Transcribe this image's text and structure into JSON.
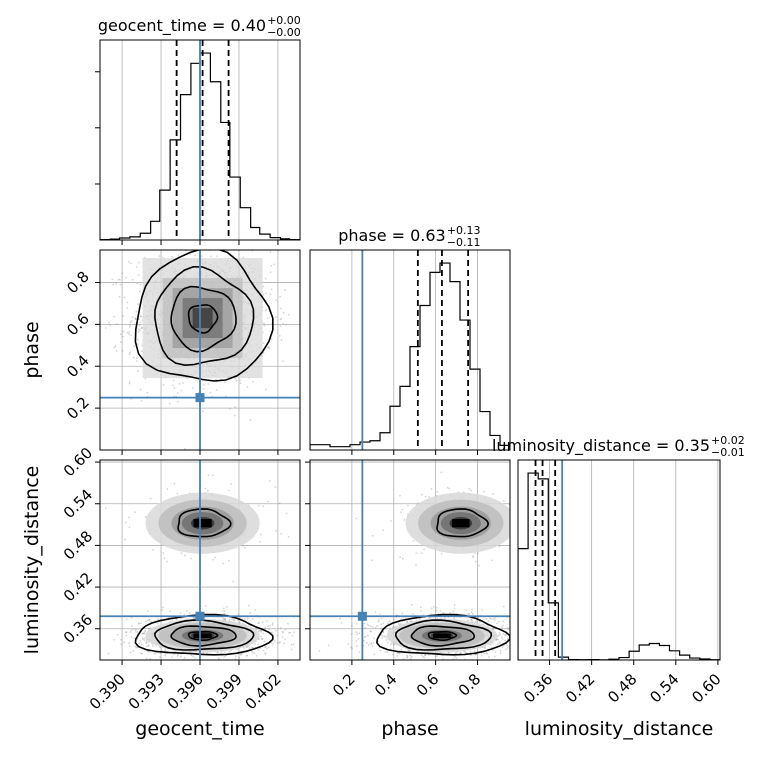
{
  "chart_data": {
    "type": "corner",
    "parameters": [
      "geocent_time",
      "phase",
      "luminosity_distance"
    ],
    "axis_labels": {
      "geocent_time": "geocent_time",
      "phase": "phase",
      "luminosity_distance": "luminosity_distance"
    },
    "titles": [
      {
        "param": "geocent_time",
        "main": "geocent_time = 0.40",
        "upper": "+0.00",
        "lower": "−0.00"
      },
      {
        "param": "phase",
        "main": "phase = 0.63",
        "upper": "+0.13",
        "lower": "−0.11"
      },
      {
        "param": "luminosity_distance",
        "main": "luminosity_distance = 0.35",
        "upper": "+0.02",
        "lower": "−0.01"
      }
    ],
    "ranges": {
      "geocent_time": [
        0.3883,
        0.4037
      ],
      "phase": [
        0.0,
        0.955
      ],
      "luminosity_distance": [
        0.315,
        0.603
      ]
    },
    "ticks": {
      "geocent_time": {
        "values": [
          0.39,
          0.393,
          0.396,
          0.399,
          0.402
        ],
        "labels": [
          "0.390",
          "0.393",
          "0.396",
          "0.399",
          "0.402"
        ]
      },
      "phase": {
        "values": [
          0.2,
          0.4,
          0.6,
          0.8
        ],
        "labels": [
          "0.2",
          "0.4",
          "0.6",
          "0.8"
        ]
      },
      "luminosity_distance": {
        "values": [
          0.36,
          0.42,
          0.48,
          0.54,
          0.6
        ],
        "labels": [
          "0.36",
          "0.42",
          "0.48",
          "0.54",
          "0.60"
        ]
      }
    },
    "truths": {
      "geocent_time": 0.396,
      "phase": 0.25,
      "luminosity_distance": 0.378
    },
    "quantiles": {
      "geocent_time": [
        0.3942,
        0.3962,
        0.3982
      ],
      "phase": [
        0.515,
        0.63,
        0.755
      ],
      "luminosity_distance": [
        0.34,
        0.35,
        0.368
      ]
    },
    "histograms": {
      "geocent_time": {
        "bin_edges": [
          0.3883,
          0.3891,
          0.3898,
          0.3906,
          0.3914,
          0.3922,
          0.3929,
          0.3937,
          0.3945,
          0.3953,
          0.396,
          0.3968,
          0.3976,
          0.3983,
          0.3991,
          0.3999,
          0.4006,
          0.4014,
          0.4022,
          0.4029,
          0.4037
        ],
        "counts": [
          3,
          6,
          14,
          22,
          48,
          133,
          355,
          713,
          1035,
          1258,
          1331,
          1127,
          837,
          448,
          230,
          89,
          42,
          17,
          8,
          3
        ]
      },
      "phase": {
        "bin_edges": [
          0.0,
          0.0478,
          0.0955,
          0.1433,
          0.191,
          0.2388,
          0.2865,
          0.3343,
          0.382,
          0.4298,
          0.4775,
          0.5253,
          0.573,
          0.6208,
          0.6685,
          0.7163,
          0.764,
          0.8118,
          0.8595,
          0.9073,
          0.955
        ],
        "counts": [
          40,
          40,
          25,
          25,
          40,
          60,
          70,
          130,
          330,
          480,
          780,
          1090,
          1340,
          1410,
          1270,
          980,
          610,
          290,
          110,
          35
        ]
      },
      "luminosity_distance": {
        "bin_edges": [
          0.315,
          0.3294,
          0.3438,
          0.3582,
          0.3726,
          0.387,
          0.4014,
          0.4158,
          0.4302,
          0.4446,
          0.459,
          0.4734,
          0.4878,
          0.5022,
          0.5166,
          0.531,
          0.5454,
          0.5598,
          0.5742,
          0.5886,
          0.603
        ],
        "counts": [
          1150,
          1930,
          1870,
          590,
          30,
          4,
          3,
          4,
          2,
          8,
          25,
          90,
          155,
          170,
          150,
          95,
          50,
          20,
          10,
          3
        ]
      }
    },
    "cluster_weights": {
      "luminosity_distance_primary": 0.85,
      "luminosity_distance_secondary": 0.15
    },
    "colors": {
      "truth": "#4682b4",
      "hist": "#000000",
      "grid": "#b0b0b0",
      "points": "#888888"
    },
    "grid": true
  }
}
